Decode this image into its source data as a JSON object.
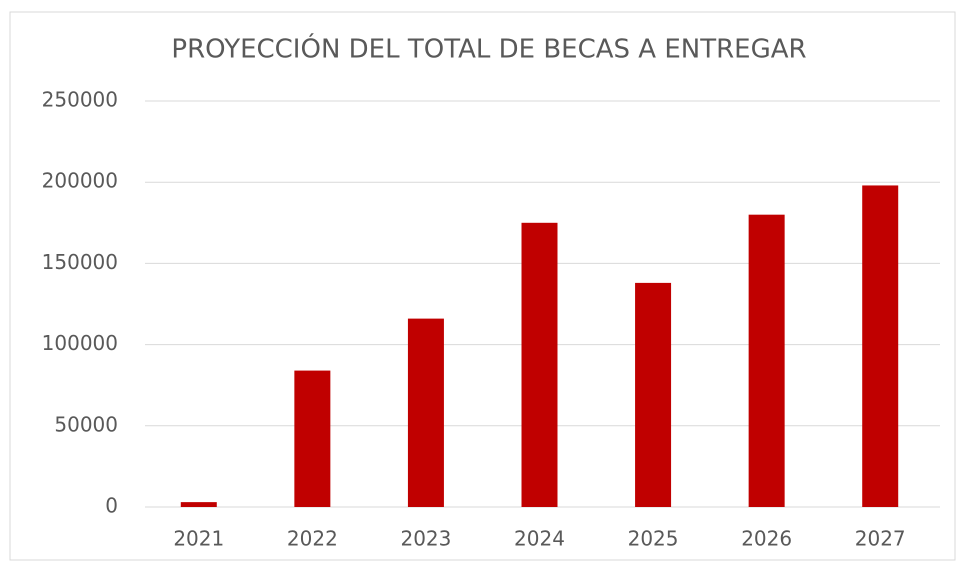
{
  "chart_data": {
    "type": "bar",
    "title": "PROYECCIÓN DEL TOTAL DE BECAS A ENTREGAR",
    "categories": [
      "2021",
      "2022",
      "2023",
      "2024",
      "2025",
      "2026",
      "2027"
    ],
    "values": [
      3000,
      84000,
      116000,
      175000,
      138000,
      180000,
      198000
    ],
    "color": "#c00000",
    "ylim": [
      0,
      250000
    ],
    "yticks": [
      0,
      50000,
      100000,
      150000,
      200000,
      250000
    ],
    "grid": true
  }
}
